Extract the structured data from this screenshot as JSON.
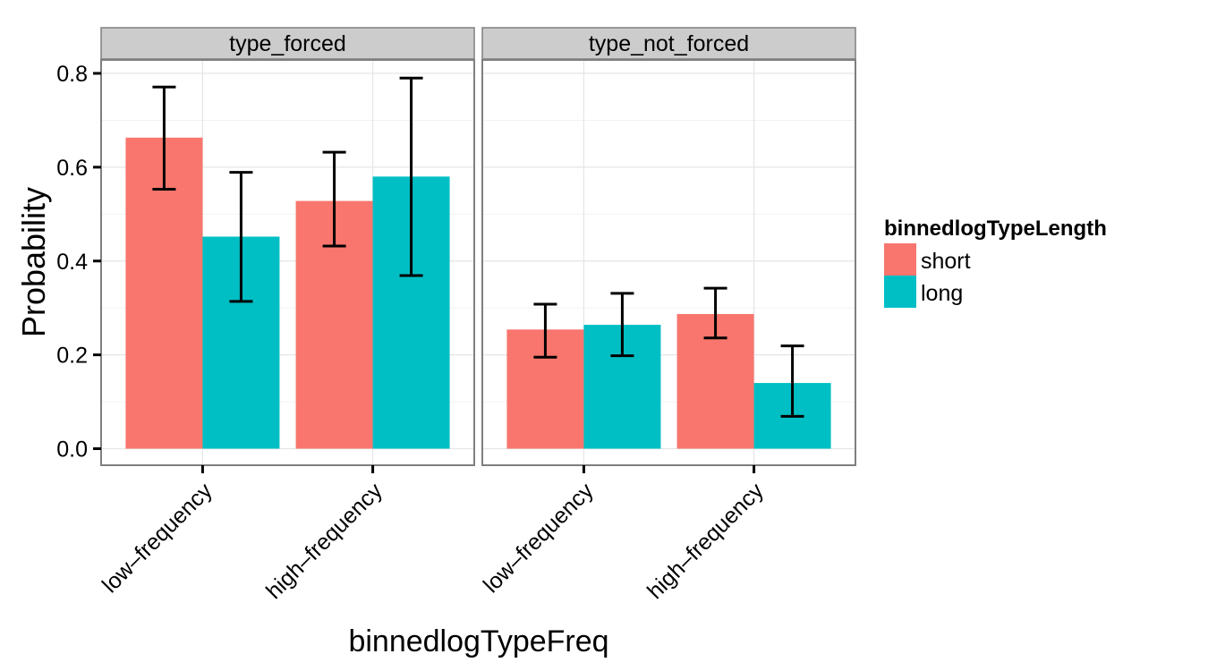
{
  "chart_data": {
    "type": "bar",
    "xlabel": "binnedlogTypeFreq",
    "ylabel": "Probability",
    "ylim": [
      -0.035,
      0.87
    ],
    "yticks": [
      0.0,
      0.2,
      0.4,
      0.6,
      0.8
    ],
    "ytick_labels": [
      "0.0",
      "0.2",
      "0.4",
      "0.6",
      "0.8"
    ],
    "grid": true,
    "facets": [
      {
        "label": "type_forced",
        "categories": [
          "low–frequency",
          "high–frequency"
        ],
        "series": [
          {
            "name": "short",
            "values": [
              0.663,
              0.528
            ],
            "err_low": [
              0.553,
              0.432
            ],
            "err_high": [
              0.771,
              0.632
            ]
          },
          {
            "name": "long",
            "values": [
              0.452,
              0.58
            ],
            "err_low": [
              0.314,
              0.369
            ],
            "err_high": [
              0.589,
              0.79
            ]
          }
        ]
      },
      {
        "label": "type_not_forced",
        "categories": [
          "low–frequency",
          "high–frequency"
        ],
        "series": [
          {
            "name": "short",
            "values": [
              0.254,
              0.287
            ],
            "err_low": [
              0.195,
              0.236
            ],
            "err_high": [
              0.308,
              0.342
            ]
          },
          {
            "name": "long",
            "values": [
              0.264,
              0.14
            ],
            "err_low": [
              0.198,
              0.069
            ],
            "err_high": [
              0.331,
              0.219
            ]
          }
        ]
      }
    ],
    "legend": {
      "title": "binnedlogTypeLength",
      "position": "right",
      "entries": [
        {
          "name": "short",
          "color": "#F8766D"
        },
        {
          "name": "long",
          "color": "#00BFC4"
        }
      ]
    }
  }
}
